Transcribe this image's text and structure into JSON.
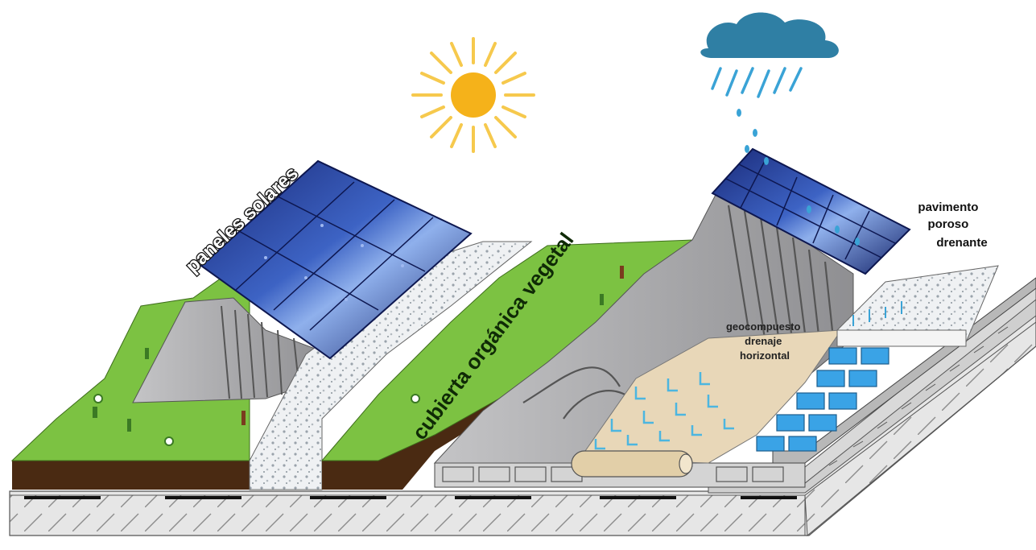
{
  "labels": {
    "solar_panels": "paneles solares",
    "vegetal_cover": "cubierta orgánica vegetal",
    "porous_pavement": [
      "pavimento",
      "poroso",
      "drenante"
    ],
    "geocomposite": [
      "geocompuesto",
      "drenaje",
      "horizontal"
    ]
  },
  "icons": {
    "sun": "sun-icon",
    "rain_cloud": "rain-cloud-icon"
  },
  "colors": {
    "grass": "#7cc242",
    "soil": "#4a2a12",
    "solar_panel": "#1c2f80",
    "sun": "#f5b21a",
    "cloud": "#2f7fa4",
    "rain": "#3aa3d6",
    "drain_mat": "#e8d7b8",
    "gravel": "#eceff1",
    "slab": "#e2e2e2",
    "slope": "#a9a9ab"
  }
}
